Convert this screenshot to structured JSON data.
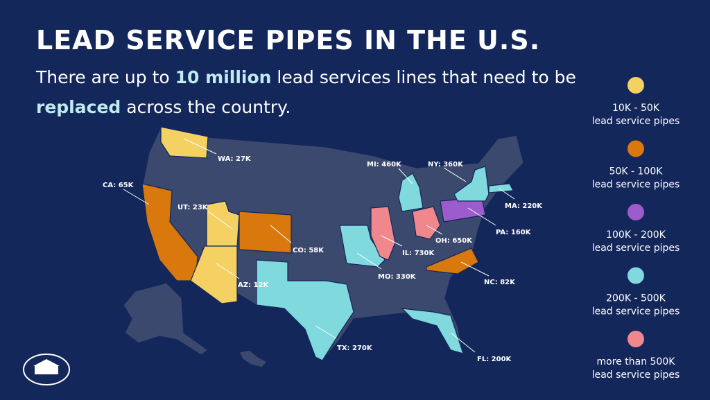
{
  "title": "LEAD SERVICE PIPES IN THE U.S.",
  "subtitle": {
    "before": "There are up to",
    "highlight_amount": "10 million",
    "middle": "lead services lines that need to be",
    "highlight_action": "replaced",
    "after": "across the country."
  },
  "states": [
    {
      "label": "WA: 27K",
      "color": "#f5d163"
    },
    {
      "label": "CA: 65K",
      "color": "#d9780c"
    },
    {
      "label": "UT: 23K",
      "color": "#f5d163"
    },
    {
      "label": "AZ: 12K",
      "color": "#f5d163"
    },
    {
      "label": "CO: 58K",
      "color": "#d9780c"
    },
    {
      "label": "TX: 270K",
      "color": "#7fd9dd"
    },
    {
      "label": "MO: 330K",
      "color": "#7fd9dd"
    },
    {
      "label": "IL: 730K",
      "color": "#ef878c"
    },
    {
      "label": "MI: 460K",
      "color": "#7fd9dd"
    },
    {
      "label": "OH: 650K",
      "color": "#ef878c"
    },
    {
      "label": "PA: 160K",
      "color": "#9c5ccb"
    },
    {
      "label": "NY: 360K",
      "color": "#7fd9dd"
    },
    {
      "label": "MA: 220K",
      "color": "#7fd9dd"
    },
    {
      "label": "NC: 82K",
      "color": "#d9780c"
    },
    {
      "label": "FL: 200K",
      "color": "#7fd9dd"
    }
  ],
  "legend": [
    {
      "color": "#f5d163",
      "range": "10K - 50K",
      "unit": "lead service pipes"
    },
    {
      "color": "#d9780c",
      "range": "50K - 100K",
      "unit": "lead service pipes"
    },
    {
      "color": "#9c5ccb",
      "range": "100K - 200K",
      "unit": "lead service pipes"
    },
    {
      "color": "#7fd9dd",
      "range": "200K - 500K",
      "unit": "lead service pipes"
    },
    {
      "color": "#ef878c",
      "range": "more than 500K",
      "unit": "lead service pipes"
    }
  ]
}
